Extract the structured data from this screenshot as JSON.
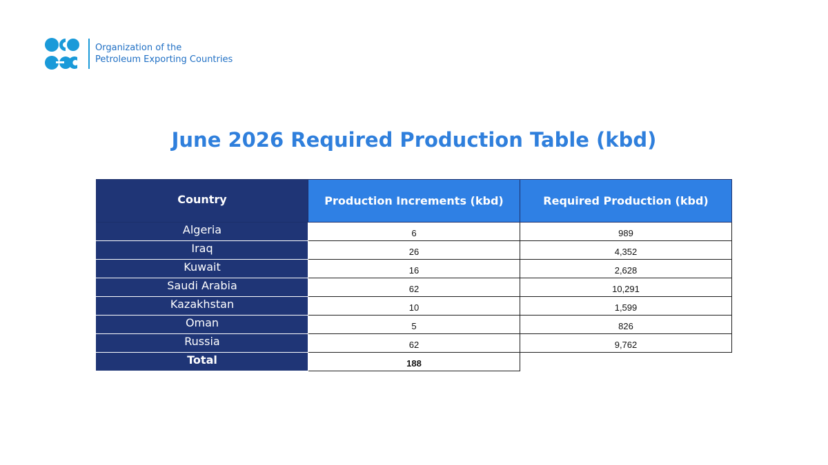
{
  "header": {
    "org_line1": "Organization of the",
    "org_line2": "Petroleum Exporting Countries",
    "logo_icon": "opec-logo-icon",
    "brand_color": "#1a9ad9"
  },
  "title": "June 2026 Required Production Table (kbd)",
  "table": {
    "columns": [
      "Country",
      "Production Increments (kbd)",
      "Required Production (kbd)"
    ],
    "rows": [
      {
        "country": "Algeria",
        "increment": "6",
        "required": "989"
      },
      {
        "country": "Iraq",
        "increment": "26",
        "required": "4,352"
      },
      {
        "country": "Kuwait",
        "increment": "16",
        "required": "2,628"
      },
      {
        "country": "Saudi Arabia",
        "increment": "62",
        "required": "10,291"
      },
      {
        "country": "Kazakhstan",
        "increment": "10",
        "required": "1,599"
      },
      {
        "country": "Oman",
        "increment": "5",
        "required": "826"
      },
      {
        "country": "Russia",
        "increment": "62",
        "required": "9,762"
      }
    ],
    "total": {
      "label": "Total",
      "increment": "188"
    }
  },
  "colors": {
    "title": "#2f7fdc",
    "header_dark": "#1f3576",
    "header_blue": "#2f80e4"
  }
}
